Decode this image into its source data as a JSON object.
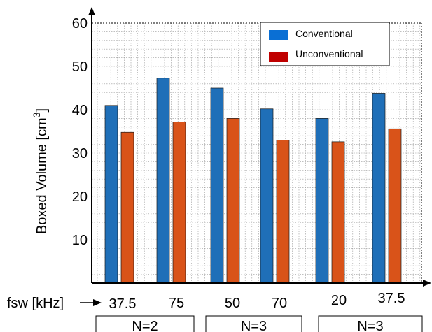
{
  "chart_data": {
    "type": "bar",
    "ylabel": "Boxed Volume [cm",
    "ylabel_sup": "3",
    "ylabel_close": "]",
    "xaxis_label": "fsw [kHz]",
    "categories": [
      "37.5",
      "75",
      "50",
      "70",
      "20",
      "37.5"
    ],
    "groups": [
      {
        "label": "N=2",
        "categories": [
          0,
          1
        ]
      },
      {
        "label": "N=3",
        "categories": [
          2,
          3
        ]
      },
      {
        "label": "N=3",
        "categories": [
          4,
          5
        ]
      }
    ],
    "ylim": [
      0,
      60
    ],
    "yticks": [
      10,
      20,
      30,
      40,
      50,
      60
    ],
    "grid": true,
    "legend_position": "top-right",
    "series": [
      {
        "name": "Conventional",
        "color": "#1f6fb8",
        "values": [
          41.0,
          47.3,
          45.0,
          40.2,
          38.0,
          43.8
        ]
      },
      {
        "name": "Unconventional",
        "color": "#d95319",
        "values": [
          34.8,
          37.2,
          38.0,
          33.0,
          32.6,
          35.6
        ]
      }
    ],
    "legend_colors": [
      "#0a6fd4",
      "#c00000"
    ]
  }
}
